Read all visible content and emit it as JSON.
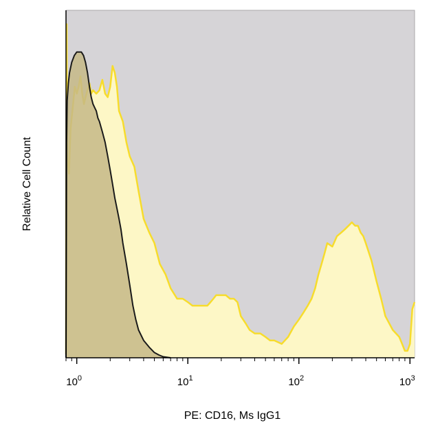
{
  "chart_data": {
    "type": "area",
    "title": "",
    "xlabel": "PE: CD16, Ms IgG1",
    "ylabel": "Relative Cell Count",
    "x_scale": "log",
    "xlim": [
      0.8,
      1100
    ],
    "ylim": [
      0,
      1.0
    ],
    "y_ticks_shown": false,
    "grid": false,
    "legend": "none",
    "x_tick_labels": [
      {
        "base": "10",
        "exp": "0",
        "value": 1
      },
      {
        "base": "10",
        "exp": "1",
        "value": 10
      },
      {
        "base": "10",
        "exp": "2",
        "value": 100
      },
      {
        "base": "10",
        "exp": "3",
        "value": 1000
      }
    ],
    "colors": {
      "plot_background": "#d6d4d7",
      "cd16_fill": "#fdf7c6",
      "cd16_line": "#f7dc2c",
      "isotype_fill": "#c6b987",
      "isotype_line": "#1a1a1a"
    },
    "series": [
      {
        "style": "yellow-filled",
        "x": [
          0.8,
          0.81,
          0.82,
          0.85,
          0.88,
          0.92,
          0.96,
          1.0,
          1.04,
          1.08,
          1.12,
          1.16,
          1.2,
          1.25,
          1.3,
          1.35,
          1.4,
          1.5,
          1.6,
          1.7,
          1.8,
          1.9,
          2.0,
          2.1,
          2.2,
          2.3,
          2.4,
          2.6,
          2.8,
          3.0,
          3.3,
          3.6,
          4.0,
          4.5,
          5.0,
          5.6,
          6.3,
          7.0,
          8.0,
          9.0,
          10,
          11,
          12,
          13,
          14,
          15,
          16,
          17,
          18,
          20,
          22,
          24,
          26,
          28,
          30,
          33,
          36,
          40,
          45,
          50,
          55,
          60,
          70,
          80,
          90,
          100,
          110,
          120,
          130,
          140,
          150,
          160,
          170,
          180,
          200,
          220,
          240,
          260,
          280,
          300,
          320,
          340,
          360,
          380,
          400,
          450,
          500,
          550,
          600,
          700,
          800,
          850,
          900,
          950,
          1000,
          1050,
          1100
        ],
        "y": [
          0.01,
          0.96,
          0.58,
          0.53,
          0.66,
          0.72,
          0.78,
          0.76,
          0.78,
          0.81,
          0.76,
          0.73,
          0.75,
          0.77,
          0.79,
          0.76,
          0.77,
          0.76,
          0.77,
          0.8,
          0.76,
          0.75,
          0.78,
          0.84,
          0.82,
          0.78,
          0.71,
          0.68,
          0.62,
          0.58,
          0.55,
          0.48,
          0.4,
          0.36,
          0.33,
          0.27,
          0.24,
          0.2,
          0.17,
          0.17,
          0.16,
          0.15,
          0.15,
          0.15,
          0.15,
          0.15,
          0.16,
          0.17,
          0.18,
          0.18,
          0.18,
          0.17,
          0.17,
          0.16,
          0.12,
          0.1,
          0.08,
          0.07,
          0.07,
          0.06,
          0.05,
          0.05,
          0.04,
          0.06,
          0.09,
          0.11,
          0.13,
          0.15,
          0.17,
          0.2,
          0.24,
          0.27,
          0.3,
          0.33,
          0.32,
          0.35,
          0.36,
          0.37,
          0.38,
          0.39,
          0.38,
          0.38,
          0.36,
          0.35,
          0.33,
          0.28,
          0.22,
          0.17,
          0.12,
          0.08,
          0.06,
          0.04,
          0.02,
          0.02,
          0.04,
          0.14,
          0.16
        ]
      },
      {
        "style": "black-outline-shaded",
        "x": [
          0.8,
          0.81,
          0.82,
          0.84,
          0.86,
          0.9,
          0.95,
          1.0,
          1.05,
          1.1,
          1.15,
          1.2,
          1.25,
          1.3,
          1.35,
          1.4,
          1.45,
          1.5,
          1.55,
          1.6,
          1.7,
          1.8,
          1.9,
          2.0,
          2.1,
          2.2,
          2.3,
          2.4,
          2.5,
          2.6,
          2.8,
          3.0,
          3.2,
          3.4,
          3.6,
          4.0,
          4.5,
          5.0,
          5.5,
          6.0,
          7.0
        ],
        "y": [
          0.0,
          0.62,
          0.74,
          0.79,
          0.82,
          0.85,
          0.87,
          0.88,
          0.88,
          0.88,
          0.87,
          0.85,
          0.82,
          0.78,
          0.75,
          0.73,
          0.72,
          0.71,
          0.69,
          0.68,
          0.65,
          0.62,
          0.58,
          0.54,
          0.5,
          0.46,
          0.43,
          0.4,
          0.37,
          0.33,
          0.27,
          0.21,
          0.15,
          0.11,
          0.08,
          0.05,
          0.03,
          0.015,
          0.008,
          0.003,
          0.0
        ]
      }
    ]
  }
}
